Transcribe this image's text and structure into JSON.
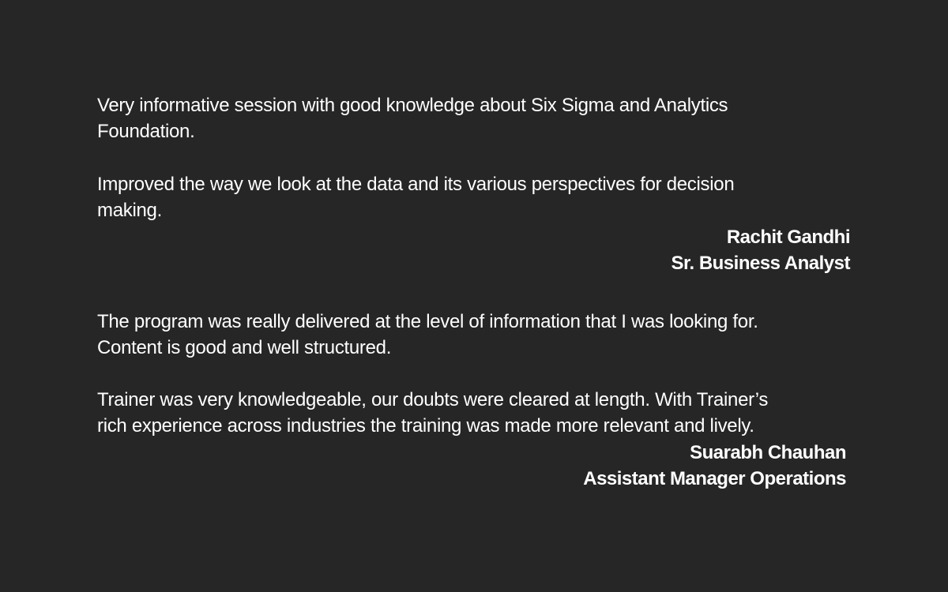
{
  "testimonials": [
    {
      "paragraphs": [
        [
          "Very informative session with good knowledge about Six Sigma and Analytics",
          "Foundation."
        ],
        [
          "Improved the way we look at the data and its various perspectives for decision",
          "making."
        ]
      ],
      "name": "Rachit Gandhi",
      "role": "Sr. Business Analyst"
    },
    {
      "paragraphs": [
        [
          "The program was really delivered at the level of information that I was looking for.",
          "Content is good and well structured."
        ],
        [
          "Trainer was very knowledgeable, our doubts were cleared at length. With Trainer’s",
          "rich experience across industries the training was made more relevant and lively."
        ]
      ],
      "name": "Suarabh Chauhan",
      "role": "Assistant Manager Operations"
    }
  ]
}
